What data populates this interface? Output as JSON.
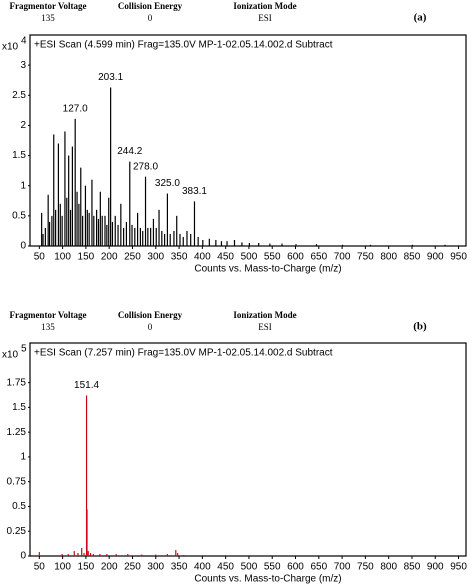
{
  "chart_data": [
    {
      "type": "stem",
      "header": [
        {
          "name": "Fragmentor Voltage",
          "value": 135
        },
        {
          "name": "Collision Energy",
          "value": 0
        },
        {
          "name": "Ionization Mode",
          "value": "ESI"
        }
      ],
      "panel_label": "(a)",
      "title": "+ESI Scan (4.599 min) Frag=135.0V MP-1-02.05.14.002.d  Subtract",
      "yscale_label": "x10",
      "yscale_exponent": 4,
      "xlabel": "Counts vs. Mass-to-Charge (m/z)",
      "color": "#000000",
      "xlim": [
        30,
        966
      ],
      "ylim": [
        0,
        3.5
      ],
      "xticks": [
        50,
        100,
        150,
        200,
        250,
        300,
        350,
        400,
        450,
        500,
        550,
        600,
        650,
        700,
        750,
        800,
        850,
        900,
        950
      ],
      "yticks": [
        0,
        0.5,
        1,
        1.5,
        2,
        2.5,
        3
      ],
      "x": [
        55,
        58,
        63,
        69,
        72,
        77,
        81,
        85,
        91,
        95,
        99,
        105,
        109,
        113,
        117,
        121,
        127.0,
        131,
        135,
        139,
        143,
        149,
        153,
        157,
        163,
        167,
        173,
        177,
        181,
        185,
        191,
        195,
        199,
        203.1,
        207,
        213,
        219,
        225,
        231,
        237,
        244.2,
        249,
        255,
        261,
        267,
        272,
        278.0,
        283,
        289,
        295,
        301,
        307,
        313,
        319,
        325.0,
        331,
        339,
        345,
        352,
        359,
        367,
        375,
        383.1,
        391,
        401,
        415,
        429,
        441,
        453,
        469,
        485,
        501,
        521,
        545,
        571,
        601,
        645,
        701,
        761,
        851,
        921
      ],
      "values": [
        0.55,
        0.2,
        0.3,
        0.85,
        0.4,
        0.5,
        1.85,
        0.6,
        1.7,
        0.7,
        0.5,
        1.9,
        0.8,
        1.5,
        0.6,
        1.65,
        2.11,
        0.9,
        0.7,
        1.3,
        0.5,
        1.0,
        0.6,
        0.55,
        1.1,
        0.5,
        0.6,
        0.45,
        0.9,
        0.5,
        0.5,
        0.35,
        0.8,
        2.63,
        0.4,
        0.5,
        0.35,
        0.7,
        0.3,
        0.4,
        1.4,
        0.35,
        0.3,
        0.55,
        0.3,
        0.25,
        1.15,
        0.3,
        0.3,
        0.45,
        0.3,
        0.6,
        0.25,
        0.2,
        0.87,
        0.2,
        0.25,
        0.5,
        0.2,
        0.15,
        0.25,
        0.2,
        0.74,
        0.15,
        0.1,
        0.12,
        0.1,
        0.08,
        0.08,
        0.1,
        0.06,
        0.05,
        0.05,
        0.04,
        0.04,
        0.03,
        0.03,
        0.02,
        0.02,
        0.02,
        0.02
      ],
      "x_labels": [
        null,
        null,
        null,
        null,
        null,
        null,
        null,
        null,
        null,
        null,
        null,
        null,
        null,
        null,
        null,
        null,
        "127.0",
        null,
        null,
        null,
        null,
        null,
        null,
        null,
        null,
        null,
        null,
        null,
        null,
        null,
        null,
        null,
        null,
        "203.1",
        null,
        null,
        null,
        null,
        null,
        null,
        "244.2",
        null,
        null,
        null,
        null,
        null,
        "278.0",
        null,
        null,
        null,
        null,
        null,
        null,
        null,
        "325.0",
        null,
        null,
        null,
        null,
        null,
        null,
        null,
        "383.1",
        null,
        null,
        null,
        null,
        null,
        null,
        null,
        null,
        null,
        null,
        null,
        null,
        null,
        null,
        null,
        null,
        null,
        null
      ]
    },
    {
      "type": "stem",
      "header": [
        {
          "name": "Fragmentor Voltage",
          "value": 135
        },
        {
          "name": "Collision Energy",
          "value": 0
        },
        {
          "name": "Ionization Mode",
          "value": "ESI"
        }
      ],
      "panel_label": "(b)",
      "title": "+ESI Scan (7.257 min) Frag=135.0V MP-1-02.05.14.002.d  Subtract",
      "yscale_label": "x10",
      "yscale_exponent": 5,
      "xlabel": "Counts vs. Mass-to-Charge (m/z)",
      "color": "#d0021b",
      "xlim": [
        30,
        966
      ],
      "ylim": [
        0,
        2.15
      ],
      "xticks": [
        50,
        100,
        150,
        200,
        250,
        300,
        350,
        400,
        450,
        500,
        550,
        600,
        650,
        700,
        750,
        800,
        850,
        900,
        950
      ],
      "yticks": [
        0,
        0.25,
        0.5,
        0.75,
        1,
        1.25,
        1.5,
        1.75
      ],
      "x": [
        50,
        99,
        112,
        125,
        133,
        141,
        146,
        151.4,
        152.4,
        155,
        160,
        166,
        180,
        195,
        215,
        240,
        270,
        300,
        325,
        343,
        347,
        360
      ],
      "values": [
        0.04,
        0.02,
        0.02,
        0.05,
        0.03,
        0.08,
        0.03,
        1.62,
        0.47,
        0.05,
        0.03,
        0.02,
        0.02,
        0.02,
        0.02,
        0.02,
        0.015,
        0.015,
        0.02,
        0.06,
        0.03,
        0.01
      ],
      "x_labels": [
        null,
        null,
        null,
        null,
        null,
        null,
        null,
        "151.4",
        null,
        null,
        null,
        null,
        null,
        null,
        null,
        null,
        null,
        null,
        null,
        null,
        null,
        null
      ]
    }
  ]
}
